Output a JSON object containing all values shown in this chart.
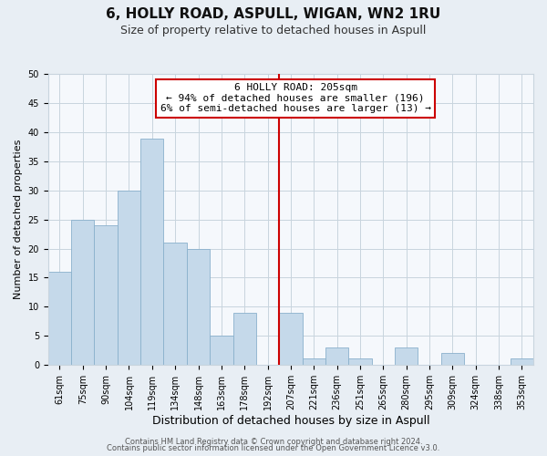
{
  "title": "6, HOLLY ROAD, ASPULL, WIGAN, WN2 1RU",
  "subtitle": "Size of property relative to detached houses in Aspull",
  "xlabel": "Distribution of detached houses by size in Aspull",
  "ylabel": "Number of detached properties",
  "bin_labels": [
    "61sqm",
    "75sqm",
    "90sqm",
    "104sqm",
    "119sqm",
    "134sqm",
    "148sqm",
    "163sqm",
    "178sqm",
    "192sqm",
    "207sqm",
    "221sqm",
    "236sqm",
    "251sqm",
    "265sqm",
    "280sqm",
    "295sqm",
    "309sqm",
    "324sqm",
    "338sqm",
    "353sqm"
  ],
  "bar_heights": [
    16,
    25,
    24,
    30,
    39,
    21,
    20,
    5,
    9,
    0,
    9,
    1,
    3,
    1,
    0,
    3,
    0,
    2,
    0,
    0,
    1
  ],
  "bar_color": "#c5d9ea",
  "bar_edge_color": "#8ab0cc",
  "vline_color": "#cc0000",
  "annotation_title": "6 HOLLY ROAD: 205sqm",
  "annotation_line1": "← 94% of detached houses are smaller (196)",
  "annotation_line2": "6% of semi-detached houses are larger (13) →",
  "annotation_box_facecolor": "#ffffff",
  "annotation_box_edgecolor": "#cc0000",
  "ylim": [
    0,
    50
  ],
  "yticks": [
    0,
    5,
    10,
    15,
    20,
    25,
    30,
    35,
    40,
    45,
    50
  ],
  "footer1": "Contains HM Land Registry data © Crown copyright and database right 2024.",
  "footer2": "Contains public sector information licensed under the Open Government Licence v3.0.",
  "background_color": "#e8eef4",
  "plot_background_color": "#f5f8fc",
  "grid_color": "#c8d4de",
  "title_fontsize": 11,
  "subtitle_fontsize": 9,
  "xlabel_fontsize": 9,
  "ylabel_fontsize": 8,
  "tick_fontsize": 7,
  "annotation_fontsize": 8,
  "footer_fontsize": 6
}
